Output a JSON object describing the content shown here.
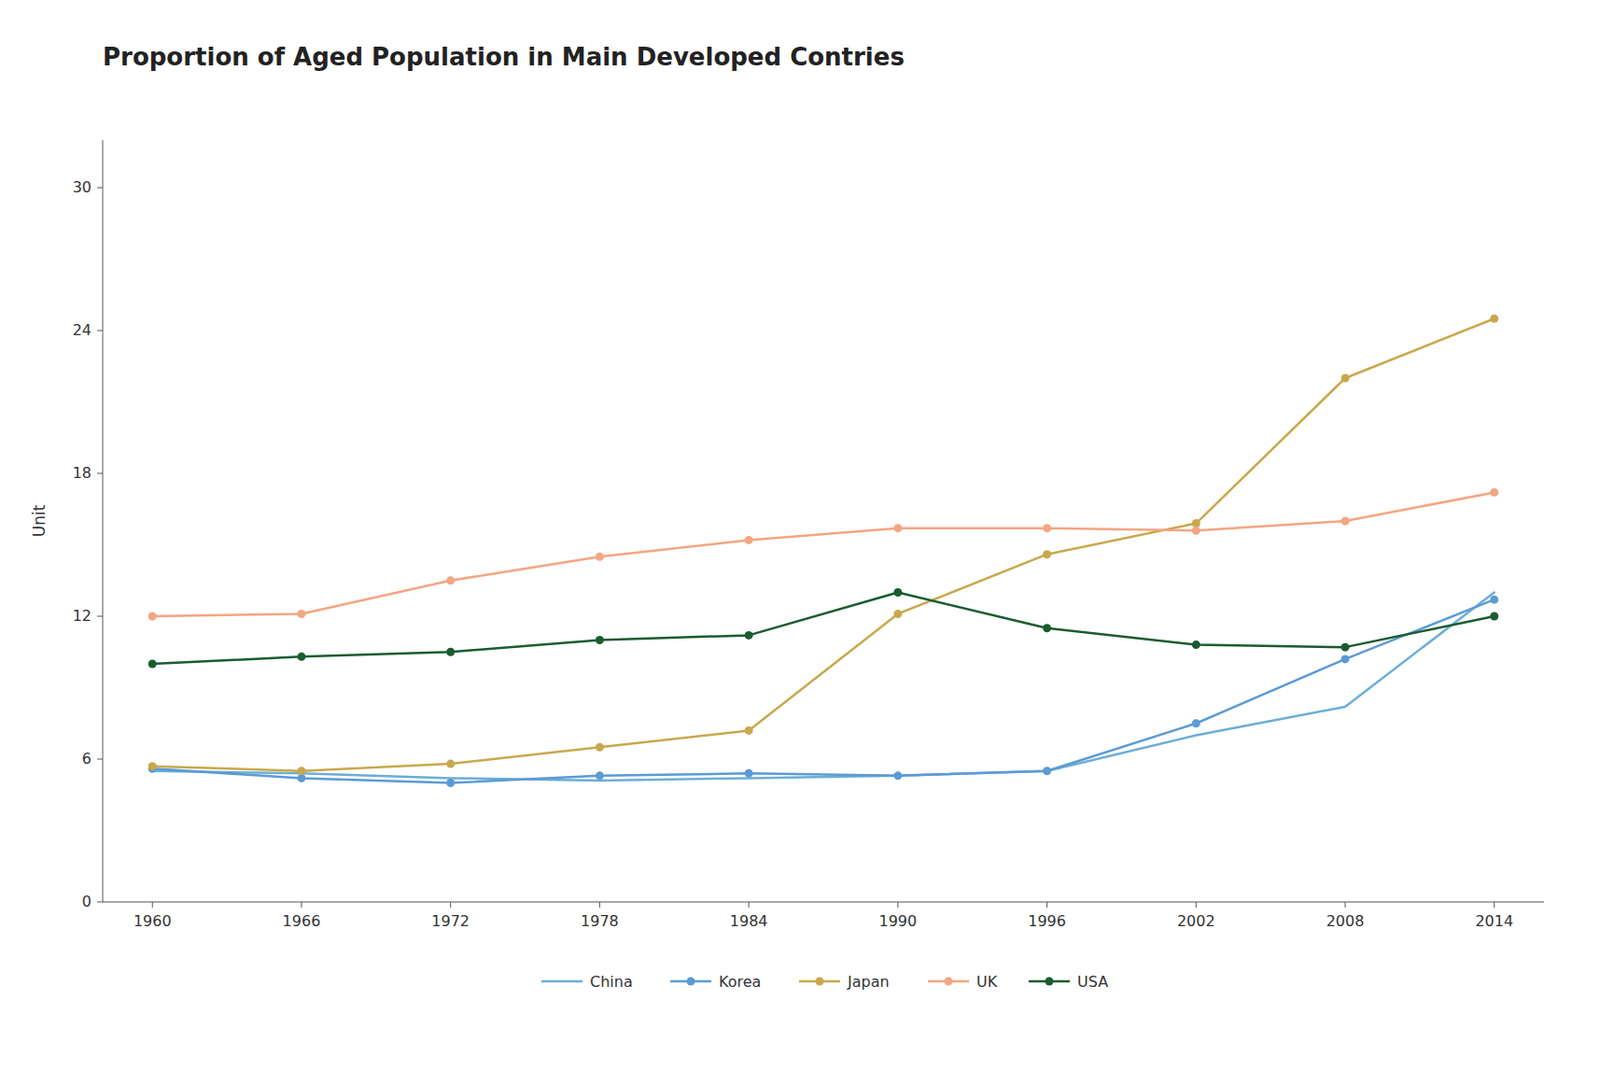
{
  "chart_data": {
    "type": "line",
    "title": "Proportion of Aged Population in Main Developed Contries",
    "y_label": "Unit",
    "x": [
      1960,
      1966,
      1972,
      1978,
      1984,
      1990,
      1996,
      2002,
      2008,
      2014
    ],
    "series": [
      {
        "name": "China",
        "color": "#6BAED6",
        "marker": "none",
        "values": [
          5.5,
          5.4,
          5.2,
          5.1,
          5.2,
          5.3,
          5.5,
          7.0,
          8.2,
          13.0
        ]
      },
      {
        "name": "Korea",
        "color": "#5B9BD5",
        "marker": "circle",
        "values": [
          5.6,
          5.2,
          5.0,
          5.3,
          5.4,
          5.3,
          5.5,
          7.5,
          10.2,
          12.7
        ]
      },
      {
        "name": "Japan",
        "color": "#C9A84C",
        "marker": "circle",
        "values": [
          5.7,
          5.5,
          5.8,
          6.5,
          7.2,
          12.1,
          14.6,
          15.9,
          22.0,
          24.5
        ]
      },
      {
        "name": "UK",
        "color": "#F4A582",
        "marker": "circle",
        "values": [
          12.0,
          12.1,
          13.5,
          14.5,
          15.2,
          15.7,
          15.7,
          15.6,
          16.0,
          17.2
        ]
      },
      {
        "name": "USA",
        "color": "#1A5C30",
        "marker": "circle",
        "values": [
          10.0,
          10.3,
          10.5,
          11.0,
          11.2,
          13.0,
          11.5,
          10.8,
          10.7,
          12.0
        ]
      }
    ],
    "xlim": [
      1958,
      2016
    ],
    "xticks": [
      1960,
      1966,
      1972,
      1978,
      1984,
      1990,
      1996,
      2002,
      2008,
      2014
    ],
    "ylim": [
      0,
      32
    ],
    "yticks": [
      0,
      6,
      12,
      18,
      24,
      30
    ],
    "grid": false,
    "legend": "bottom"
  }
}
